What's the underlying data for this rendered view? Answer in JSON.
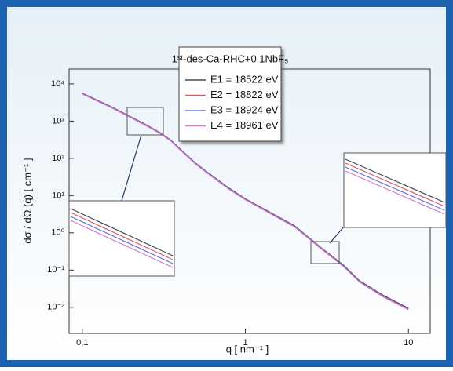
{
  "chart_data": {
    "type": "line",
    "legend_title": "1ˢᵗ-des-Ca-RHC+0.1NbF₅",
    "xlabel": "q [ nm⁻¹ ]",
    "ylabel": "dσ / dΩ (q) [ cm⁻¹ ]",
    "xscale": "log",
    "yscale": "log",
    "xlim": [
      0.083,
      13.6
    ],
    "ylim": [
      0.002,
      25000
    ],
    "xticks": [
      {
        "value": 0.1,
        "label": "0,1"
      },
      1,
      10
    ],
    "yticks": [
      {
        "value": 10000,
        "label": "10⁴"
      },
      {
        "value": 1000,
        "label": "10³"
      },
      {
        "value": 100,
        "label": "10²"
      },
      {
        "value": 10,
        "label": "10¹"
      },
      {
        "value": 1,
        "label": "10⁰"
      },
      {
        "value": 0.1,
        "label": "10⁻¹"
      },
      {
        "value": 0.01,
        "label": "10⁻²"
      }
    ],
    "legend": "upper center",
    "x": [
      0.1,
      0.15,
      0.2,
      0.25,
      0.3,
      0.35,
      0.4,
      0.5,
      0.6,
      0.8,
      1,
      1.5,
      2,
      3,
      4,
      5,
      7,
      10
    ],
    "series": [
      {
        "name": "E1 = 18522 eV",
        "color": "#3c4d5c",
        "values": [
          5600,
          2450,
          1280,
          770,
          490,
          305,
          175,
          72,
          39,
          15.5,
          8.2,
          3.1,
          1.55,
          0.36,
          0.135,
          0.052,
          0.021,
          0.0095
        ]
      },
      {
        "name": "E2 = 18822 eV",
        "color": "#e05a5a",
        "values": [
          5500,
          2400,
          1250,
          750,
          480,
          300,
          170,
          70,
          38,
          15,
          8,
          3,
          1.5,
          0.35,
          0.13,
          0.05,
          0.02,
          0.009
        ]
      },
      {
        "name": "E3 = 18924 eV",
        "color": "#5a72e0",
        "values": [
          5400,
          2360,
          1230,
          735,
          470,
          294,
          167,
          68.5,
          37.2,
          14.7,
          7.85,
          2.93,
          1.47,
          0.342,
          0.127,
          0.049,
          0.0195,
          0.0088
        ]
      },
      {
        "name": "E4 = 18961 eV",
        "color": "#d47ad4",
        "values": [
          5300,
          2320,
          1210,
          720,
          460,
          288,
          164,
          67,
          36.4,
          14.4,
          7.7,
          2.87,
          1.44,
          0.335,
          0.124,
          0.048,
          0.019,
          0.0086
        ]
      }
    ]
  }
}
